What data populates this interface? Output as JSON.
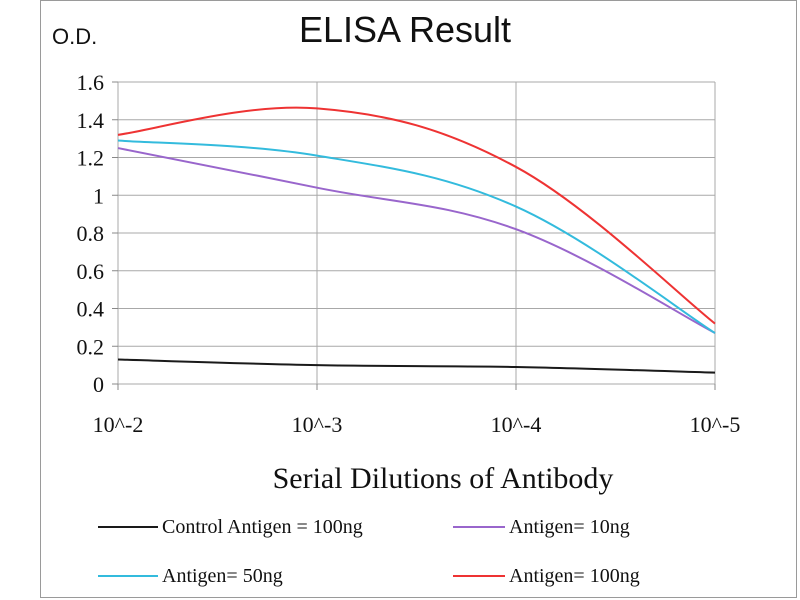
{
  "chart_data": {
    "type": "line",
    "title": "ELISA Result",
    "ylabel": "O.D.",
    "xlabel": "Serial Dilutions  of Antibody",
    "categories": [
      "10^-2",
      "10^-3",
      "10^-4",
      "10^-5"
    ],
    "yticks": [
      "0",
      "0.2",
      "0.4",
      "0.6",
      "0.8",
      "1",
      "1.2",
      "1.4",
      "1.6"
    ],
    "ylim": [
      0,
      1.6
    ],
    "grid": true,
    "legend_position": "bottom",
    "series": [
      {
        "name": "Control Antigen = 100ng",
        "color": "#1a1a1a",
        "values": [
          0.13,
          0.1,
          0.09,
          0.06
        ]
      },
      {
        "name": "Antigen= 10ng",
        "color": "#9966cc",
        "values": [
          1.25,
          1.04,
          0.82,
          0.27
        ]
      },
      {
        "name": "Antigen= 50ng",
        "color": "#33bbdd",
        "values": [
          1.29,
          1.21,
          0.94,
          0.27
        ]
      },
      {
        "name": "Antigen= 100ng",
        "color": "#ee3333",
        "values": [
          1.32,
          1.46,
          1.15,
          0.32
        ]
      }
    ]
  }
}
